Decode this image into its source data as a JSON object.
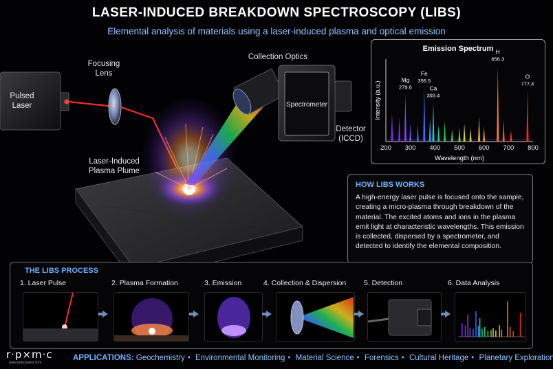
{
  "header": {
    "title": "LASER-INDUCED BREAKDOWN SPECTROSCOPY (LIBS)",
    "subtitle": "Elemental analysis of materials using a laser-induced plasma and optical emission"
  },
  "diagram": {
    "pulsed_laser": [
      "Pulsed",
      "Laser"
    ],
    "focusing_lens": [
      "Focusing",
      "Lens"
    ],
    "collection_optics": "Collection Optics",
    "spectrometer": "Spectrometer",
    "detector": [
      "Detector",
      "(ICCD)"
    ],
    "plasma_plume": [
      "Laser-Induced",
      "Plasma Plume"
    ]
  },
  "chart_data": {
    "type": "line",
    "title": "Emission Spectrum",
    "xlabel": "Wavelength (nm)",
    "ylabel": "Intensity (a.u.)",
    "xlim": [
      200,
      800
    ],
    "ylim": [
      0,
      1
    ],
    "x_ticks": [
      200,
      300,
      400,
      500,
      600,
      700,
      800
    ],
    "grid": false,
    "peaks": [
      {
        "x": 225,
        "y": 0.35,
        "color": "#7a2cff"
      },
      {
        "x": 255,
        "y": 0.3,
        "color": "#7a2cff"
      },
      {
        "x": 279.6,
        "y": 0.58,
        "color": "#8a3cff"
      },
      {
        "x": 300,
        "y": 0.22,
        "color": "#6a4cff"
      },
      {
        "x": 330,
        "y": 0.2,
        "color": "#4c5cff"
      },
      {
        "x": 356.5,
        "y": 0.66,
        "color": "#3a6cff"
      },
      {
        "x": 380,
        "y": 0.28,
        "color": "#2a9cff"
      },
      {
        "x": 393.4,
        "y": 0.48,
        "color": "#17c9c9"
      },
      {
        "x": 415,
        "y": 0.2,
        "color": "#10d0a0"
      },
      {
        "x": 440,
        "y": 0.25,
        "color": "#18d060"
      },
      {
        "x": 470,
        "y": 0.15,
        "color": "#40d030"
      },
      {
        "x": 500,
        "y": 0.17,
        "color": "#90d020"
      },
      {
        "x": 520,
        "y": 0.22,
        "color": "#c8d020"
      },
      {
        "x": 545,
        "y": 0.16,
        "color": "#e8d020"
      },
      {
        "x": 580,
        "y": 0.3,
        "color": "#f0b020"
      },
      {
        "x": 600,
        "y": 0.18,
        "color": "#f0901a"
      },
      {
        "x": 656.3,
        "y": 0.92,
        "color": "#ff7a1a"
      },
      {
        "x": 680,
        "y": 0.26,
        "color": "#ff5a1a"
      },
      {
        "x": 710,
        "y": 0.14,
        "color": "#ff3a1a"
      },
      {
        "x": 777.4,
        "y": 0.62,
        "color": "#ff2020"
      }
    ],
    "annotations": [
      {
        "element": "Mg",
        "wavelength": "279.6",
        "x": 279.6
      },
      {
        "element": "Fe",
        "wavelength": "356.5",
        "x": 356.5
      },
      {
        "element": "Ca",
        "wavelength": "393.4",
        "x": 393.4
      },
      {
        "element": "H",
        "wavelength": "656.3",
        "x": 656.3
      },
      {
        "element": "O",
        "wavelength": "777.4",
        "x": 777.4
      }
    ]
  },
  "how": {
    "title": "HOW LIBS WORKS",
    "body": "A high-energy laser pulse is focused onto the sample, creating a micro-plasma through breakdown of the material. The excited atoms and ions in the plasma emit light at characteristic wavelengths. This emission is collected, dispersed by a spectrometer, and detected to identify the elemental composition."
  },
  "process": {
    "title": "THE LIBS PROCESS",
    "steps": [
      {
        "label": "1. Laser Pulse"
      },
      {
        "label": "2. Plasma Formation"
      },
      {
        "label": "3. Emission"
      },
      {
        "label": "4. Collection & Dispersion"
      },
      {
        "label": "5. Detection"
      },
      {
        "label": "6. Data Analysis"
      }
    ]
  },
  "footer": {
    "logo": "r·p×m·c",
    "logo_sub": "www.rpmclasers.com",
    "applications_label": "APPLICATIONS:",
    "applications": [
      "Geochemistry",
      "Environmental Monitoring",
      "Material Science",
      "Forensics",
      "Cultural Heritage",
      "Planetary Exploration"
    ]
  },
  "colors": {
    "accent": "#6fb0ff",
    "subtitle": "#8fc4ff",
    "laser": "#ff2a2a",
    "plasma": "#b46bff"
  }
}
